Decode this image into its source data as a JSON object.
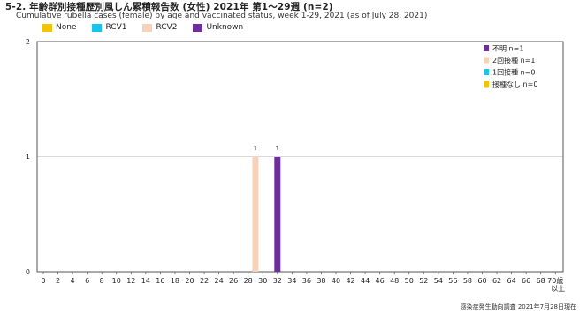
{
  "header": {
    "title": "5-2. 年齢群別接種歴別風しん累積報告数 (女性)  2021年 第1～29週 (n=2)",
    "subtitle": "Cumulative rubella cases (female) by age and vaccinated status, week 1-29, 2021 (as of July 28, 2021)"
  },
  "legend_top": [
    {
      "label": "None",
      "color": "#f5c400"
    },
    {
      "label": "RCV1",
      "color": "#16c4f0"
    },
    {
      "label": "RCV2",
      "color": "#f7d2b6"
    },
    {
      "label": "Unknown",
      "color": "#6e2e9c"
    }
  ],
  "chart_data": {
    "type": "bar",
    "ylim": [
      0,
      2
    ],
    "yticks": [
      0,
      1,
      2
    ],
    "grid": "horizontal",
    "xticks": [
      "0",
      "2",
      "4",
      "6",
      "8",
      "10",
      "12",
      "14",
      "16",
      "18",
      "20",
      "22",
      "24",
      "26",
      "28",
      "30",
      "32",
      "34",
      "36",
      "38",
      "40",
      "42",
      "44",
      "46",
      "48",
      "50",
      "52",
      "54",
      "56",
      "58",
      "60",
      "62",
      "64",
      "66",
      "68",
      "70歳"
    ],
    "x_suffix": "以上",
    "bars": [
      {
        "age": 29,
        "status": "RCV2",
        "value": 1,
        "label": "1"
      },
      {
        "age": 32,
        "status": "Unknown",
        "value": 1,
        "label": "1"
      }
    ],
    "legend_inner": [
      {
        "label": "不明 n=1",
        "color": "#6e2e9c"
      },
      {
        "label": "2回接種 n=1",
        "color": "#f7d2b6"
      },
      {
        "label": "1回接種 n=0",
        "color": "#16c4f0"
      },
      {
        "label": "接種なし n=0",
        "color": "#f5c400"
      }
    ],
    "legend_placement": "top-right"
  },
  "footer": {
    "source": "感染症発生動向調査  2021年7月28日現在"
  }
}
